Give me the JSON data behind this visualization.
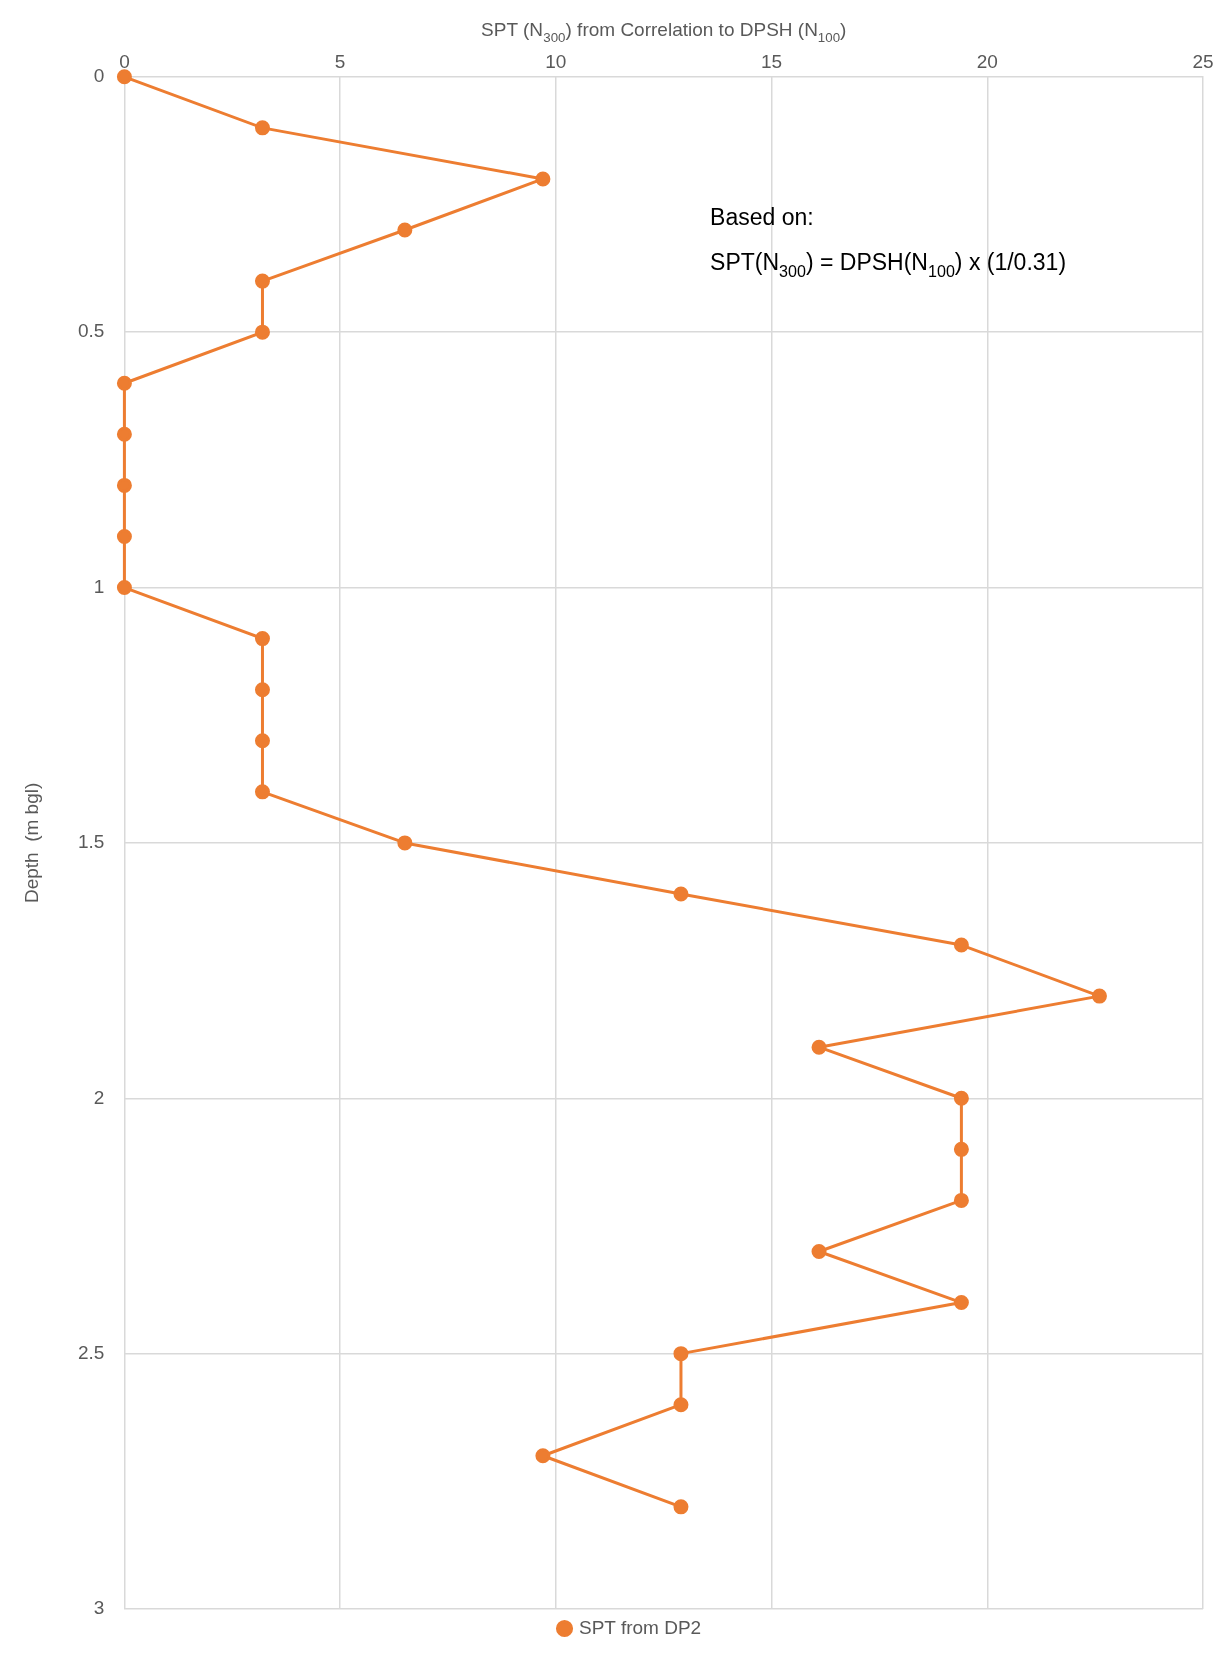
{
  "chart_data": {
    "type": "line",
    "xlabel": "SPT (N$_{300}$) from Correlation to DPSH (N$_{100}$)",
    "ylabel": "Depth  (m bgl)",
    "xlim": [
      0,
      25
    ],
    "xticks": [
      0,
      5,
      10,
      15,
      20,
      25
    ],
    "ylim": [
      3,
      0
    ],
    "yticks": [
      0,
      0.5,
      1,
      1.5,
      2,
      2.5,
      3
    ],
    "grid": true,
    "legend": "bottom",
    "marker": "circle",
    "line_style": "solid",
    "annotations": [
      "Based on:",
      "SPT(N$_{300}$) = DPSH(N$_{100}$) x (1/0.31)"
    ],
    "series": [
      {
        "name": "SPT from DP2",
        "color": "#ed7d31",
        "x": [
          0,
          3.2,
          9.7,
          6.5,
          3.2,
          3.2,
          0,
          0,
          0,
          0,
          0,
          3.2,
          3.2,
          3.2,
          3.2,
          6.5,
          12.9,
          19.4,
          22.6,
          16.1,
          19.4,
          19.4,
          19.4,
          16.1,
          19.4,
          12.9,
          12.9,
          9.7,
          12.9
        ],
        "values": [
          0,
          0.1,
          0.2,
          0.3,
          0.4,
          0.5,
          0.6,
          0.7,
          0.8,
          0.9,
          1,
          1.1,
          1.2,
          1.3,
          1.4,
          1.5,
          1.6,
          1.7,
          1.8,
          1.9,
          2,
          2.1,
          2.2,
          2.3,
          2.4,
          2.5,
          2.6,
          2.7,
          2.8
        ]
      }
    ]
  }
}
